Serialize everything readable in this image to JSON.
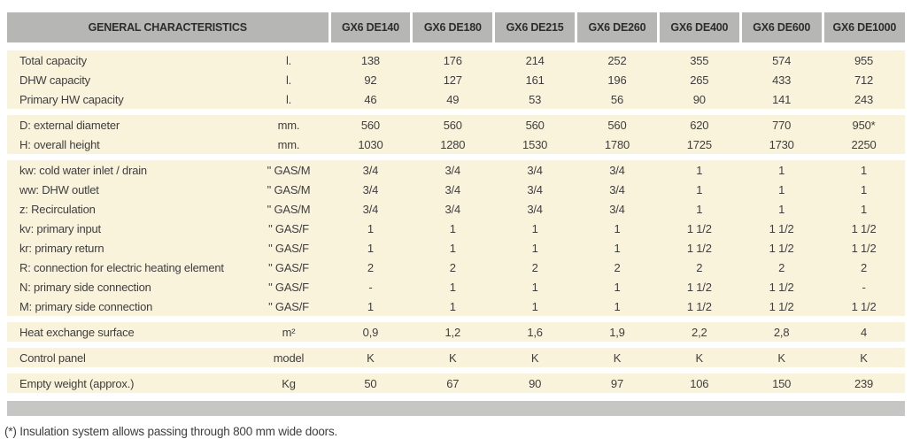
{
  "table": {
    "title": "GENERAL CHARACTERISTICS",
    "columns": [
      "GX6 DE140",
      "GX6 DE180",
      "GX6 DE215",
      "GX6 DE260",
      "GX6 DE400",
      "GX6 DE600",
      "GX6 DE1000"
    ],
    "groups": [
      {
        "rows": [
          {
            "label": "Total capacity",
            "unit": "l.",
            "values": [
              "138",
              "176",
              "214",
              "252",
              "355",
              "574",
              "955"
            ]
          },
          {
            "label": "DHW capacity",
            "unit": "l.",
            "values": [
              "92",
              "127",
              "161",
              "196",
              "265",
              "433",
              "712"
            ]
          },
          {
            "label": "Primary HW capacity",
            "unit": "l.",
            "values": [
              "46",
              "49",
              "53",
              "56",
              "90",
              "141",
              "243"
            ]
          }
        ]
      },
      {
        "rows": [
          {
            "label": "D: external diameter",
            "unit": "mm.",
            "values": [
              "560",
              "560",
              "560",
              "560",
              "620",
              "770",
              "950*"
            ]
          },
          {
            "label": "H: overall height",
            "unit": "mm.",
            "values": [
              "1030",
              "1280",
              "1530",
              "1780",
              "1725",
              "1730",
              "2250"
            ]
          }
        ]
      },
      {
        "rows": [
          {
            "label": "kw: cold water inlet / drain",
            "unit": "\" GAS/M",
            "values": [
              "3/4",
              "3/4",
              "3/4",
              "3/4",
              "1",
              "1",
              "1"
            ]
          },
          {
            "label": "ww: DHW outlet",
            "unit": "\" GAS/M",
            "values": [
              "3/4",
              "3/4",
              "3/4",
              "3/4",
              "1",
              "1",
              "1"
            ]
          },
          {
            "label": "z: Recirculation",
            "unit": "\" GAS/M",
            "values": [
              "3/4",
              "3/4",
              "3/4",
              "3/4",
              "1",
              "1",
              "1"
            ]
          },
          {
            "label": "kv: primary input",
            "unit": "\" GAS/F",
            "values": [
              "1",
              "1",
              "1",
              "1",
              "1 1/2",
              "1 1/2",
              "1 1/2"
            ]
          },
          {
            "label": "kr: primary return",
            "unit": "\" GAS/F",
            "values": [
              "1",
              "1",
              "1",
              "1",
              "1 1/2",
              "1 1/2",
              "1 1/2"
            ]
          },
          {
            "label": "R: connection for electric heating element",
            "unit": "\" GAS/F",
            "values": [
              "2",
              "2",
              "2",
              "2",
              "2",
              "2",
              "2"
            ]
          },
          {
            "label": "N: primary side connection",
            "unit": "\" GAS/F",
            "values": [
              "-",
              "1",
              "1",
              "1",
              "1 1/2",
              "1 1/2",
              "-"
            ]
          },
          {
            "label": "M: primary side connection",
            "unit": "\" GAS/F",
            "values": [
              "1",
              "1",
              "1",
              "1",
              "1 1/2",
              "1 1/2",
              "1 1/2"
            ]
          }
        ]
      },
      {
        "rows": [
          {
            "label": "Heat exchange surface",
            "unit": "m²",
            "values": [
              "0,9",
              "1,2",
              "1,6",
              "1,9",
              "2,2",
              "2,8",
              "4"
            ]
          }
        ]
      },
      {
        "rows": [
          {
            "label": "Control panel",
            "unit": "model",
            "values": [
              "K",
              "K",
              "K",
              "K",
              "K",
              "K",
              "K"
            ]
          }
        ]
      },
      {
        "rows": [
          {
            "label": "Empty weight (approx.)",
            "unit": "Kg",
            "values": [
              "50",
              "67",
              "90",
              "97",
              "106",
              "150",
              "239"
            ]
          }
        ]
      }
    ]
  },
  "footnote": "(*) Insulation system allows passing through 800 mm wide doors.",
  "colors": {
    "header_bg": "#b6b7b5",
    "row_bg": "#faf3dc",
    "footer_bar_bg": "#c6c7c5",
    "text": "#3e3e3e"
  }
}
